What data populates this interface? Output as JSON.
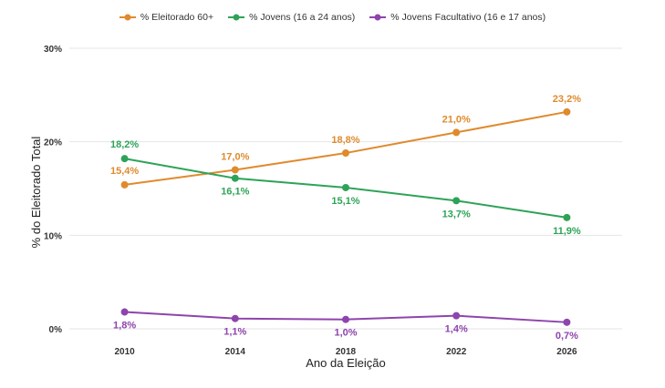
{
  "chart_data": {
    "type": "line",
    "x": [
      2010,
      2014,
      2018,
      2022,
      2026
    ],
    "xlabel": "Ano da Eleição",
    "ylabel": "% do Eleitorado Total",
    "ylim": [
      0,
      30
    ],
    "yticks": [
      0,
      10,
      20,
      30
    ],
    "ytick_labels": [
      "0%",
      "10%",
      "20%",
      "30%"
    ],
    "xtick_labels": [
      "2010",
      "2014",
      "2018",
      "2022",
      "2026"
    ],
    "grid": true,
    "legend_position": "top",
    "series": [
      {
        "name": "% Eleitorado 60+",
        "color": "#e08a2e",
        "values": [
          15.4,
          17.0,
          18.8,
          21.0,
          23.2
        ],
        "labels": [
          "15,4%",
          "17,0%",
          "18,8%",
          "21,0%",
          "23,2%"
        ]
      },
      {
        "name": "% Jovens (16 a 24 anos)",
        "color": "#2ea358",
        "values": [
          18.2,
          16.1,
          15.1,
          13.7,
          11.9
        ],
        "labels": [
          "18,2%",
          "16,1%",
          "15,1%",
          "13,7%",
          "11,9%"
        ]
      },
      {
        "name": "% Jovens Facultativo (16 e 17 anos)",
        "color": "#8e44ad",
        "values": [
          1.8,
          1.1,
          1.0,
          1.4,
          0.7
        ],
        "labels": [
          "1,8%",
          "1,1%",
          "1,0%",
          "1,4%",
          "0,7%"
        ]
      }
    ]
  }
}
